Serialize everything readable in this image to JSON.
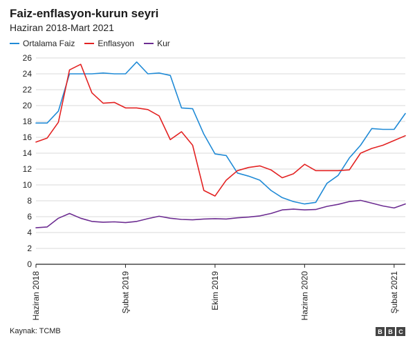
{
  "header": {
    "title": "Faiz-enflasyon-kurun seyri",
    "subtitle": "Haziran 2018-Mart 2021"
  },
  "footer": {
    "source": "Kaynak: TCMB",
    "logo": [
      "B",
      "B",
      "C"
    ]
  },
  "colors": {
    "Ortalama Faiz": "#1f8ad6",
    "Enflasyon": "#e32222",
    "Kur": "#6c2c91",
    "axis": "#222222",
    "grid": "#d9d9d9"
  },
  "chart_data": {
    "type": "line",
    "title": "Faiz-enflasyon-kurun seyri",
    "subtitle": "Haziran 2018-Mart 2021",
    "x": [
      "2018-06",
      "2018-07",
      "2018-08",
      "2018-09",
      "2018-10",
      "2018-11",
      "2018-12",
      "2019-01",
      "2019-02",
      "2019-03",
      "2019-04",
      "2019-05",
      "2019-06",
      "2019-07",
      "2019-08",
      "2019-09",
      "2019-10",
      "2019-11",
      "2019-12",
      "2020-01",
      "2020-02",
      "2020-03",
      "2020-04",
      "2020-05",
      "2020-06",
      "2020-07",
      "2020-08",
      "2020-09",
      "2020-10",
      "2020-11",
      "2020-12",
      "2021-01",
      "2021-02",
      "2021-03"
    ],
    "xticks": [
      {
        "label": "Haziran 2018",
        "x": "2018-06"
      },
      {
        "label": "Şubat 2019",
        "x": "2019-02"
      },
      {
        "label": "Ekim 2019",
        "x": "2019-10"
      },
      {
        "label": "Haziran 2020",
        "x": "2020-06"
      },
      {
        "label": "Şubat 2021",
        "x": "2021-02"
      }
    ],
    "yticks": [
      0,
      2,
      4,
      6,
      8,
      10,
      12,
      14,
      16,
      18,
      20,
      22,
      24,
      26
    ],
    "ylim": [
      0,
      26
    ],
    "grid": true,
    "legend": "top-left",
    "series": [
      {
        "name": "Ortalama Faiz",
        "values": [
          17.8,
          17.8,
          19.3,
          24.0,
          24.0,
          24.0,
          24.1,
          24.0,
          24.0,
          25.5,
          24.0,
          24.1,
          23.8,
          19.7,
          19.6,
          16.4,
          13.9,
          13.7,
          11.5,
          11.1,
          10.6,
          9.3,
          8.4,
          7.9,
          7.6,
          7.8,
          10.2,
          11.2,
          13.4,
          15.0,
          17.1,
          17.0,
          17.0,
          19.0
        ]
      },
      {
        "name": "Enflasyon",
        "values": [
          15.4,
          15.9,
          17.9,
          24.5,
          25.2,
          21.6,
          20.3,
          20.4,
          19.7,
          19.7,
          19.5,
          18.7,
          15.7,
          16.7,
          15.0,
          9.3,
          8.6,
          10.6,
          11.8,
          12.2,
          12.4,
          11.9,
          10.9,
          11.4,
          12.6,
          11.8,
          11.8,
          11.8,
          11.9,
          14.0,
          14.6,
          15.0,
          15.6,
          16.2
        ]
      },
      {
        "name": "Kur",
        "values": [
          4.6,
          4.7,
          5.8,
          6.4,
          5.8,
          5.4,
          5.3,
          5.35,
          5.25,
          5.4,
          5.75,
          6.05,
          5.8,
          5.65,
          5.6,
          5.7,
          5.75,
          5.7,
          5.85,
          5.95,
          6.1,
          6.4,
          6.85,
          6.95,
          6.85,
          6.9,
          7.3,
          7.55,
          7.9,
          8.05,
          7.7,
          7.35,
          7.1,
          7.6
        ]
      }
    ]
  }
}
